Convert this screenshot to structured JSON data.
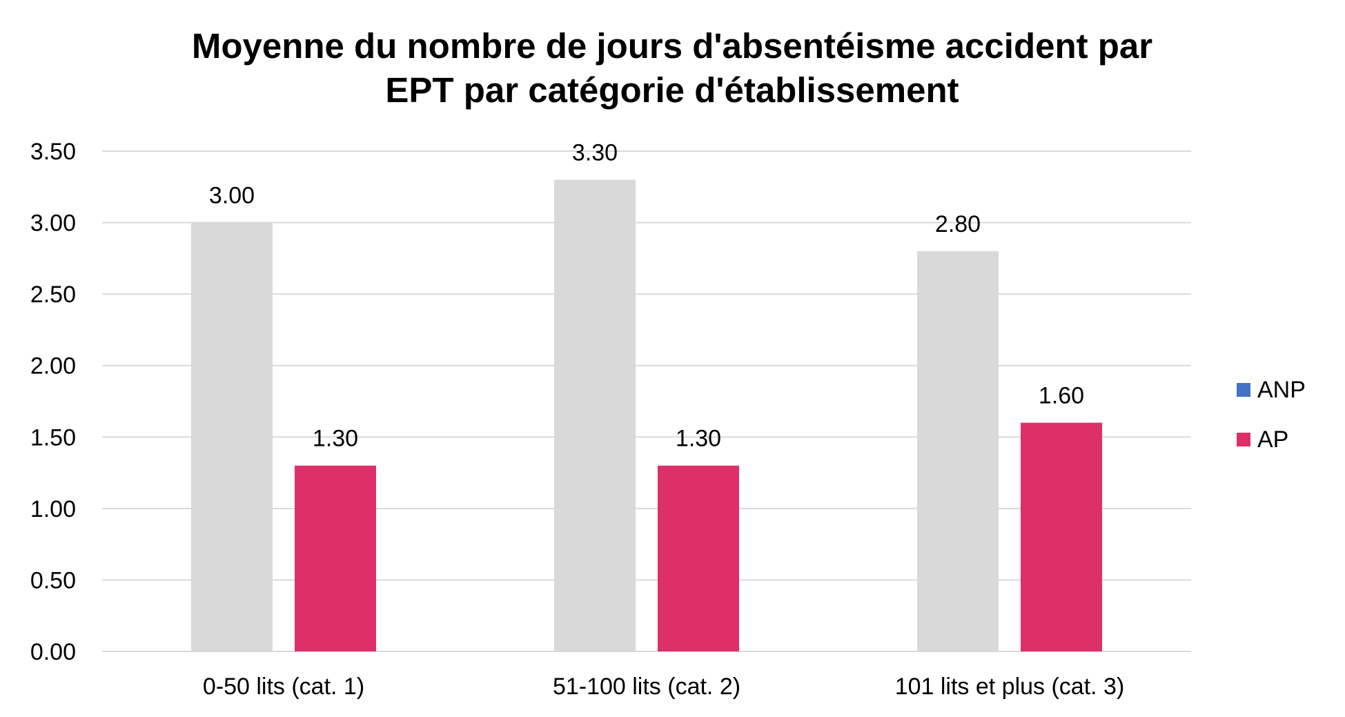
{
  "chart_data": {
    "type": "bar",
    "title": "Moyenne du nombre de jours d'absentéisme accident par EPT par catégorie d'établissement",
    "title_lines": [
      "Moyenne du nombre de jours d'absentéisme accident par",
      "EPT par catégorie d'établissement"
    ],
    "categories": [
      "0-50 lits (cat. 1)",
      "51-100 lits (cat. 2)",
      "101 lits et plus (cat. 3)"
    ],
    "series": [
      {
        "name": "ANP",
        "values": [
          3.0,
          3.3,
          2.8
        ],
        "color": "#d9d9d9",
        "legend_color": "#4472c4"
      },
      {
        "name": "AP",
        "values": [
          1.3,
          1.3,
          1.6
        ],
        "color": "#de3068",
        "legend_color": "#de3068"
      }
    ],
    "data_labels": [
      [
        "3.00",
        "3.30",
        "2.80"
      ],
      [
        "1.30",
        "1.30",
        "1.60"
      ]
    ],
    "ylim": [
      0,
      3.5
    ],
    "yticks": [
      "0.00",
      "0.50",
      "1.00",
      "1.50",
      "2.00",
      "2.50",
      "3.00",
      "3.50"
    ],
    "ytick_values": [
      0,
      0.5,
      1.0,
      1.5,
      2.0,
      2.5,
      3.0,
      3.5
    ],
    "xlabel": "",
    "ylabel": "",
    "grid": true,
    "legend_position": "right"
  }
}
